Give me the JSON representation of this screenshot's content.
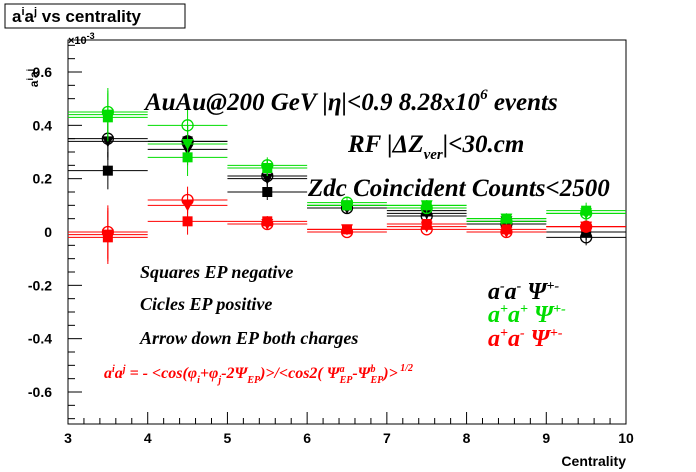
{
  "chart_data": {
    "type": "scatter",
    "title": "aⁱaʲ vs centrality",
    "xlabel": "Centrality",
    "ylabel": "aⁱaʲ",
    "y_exponent_label": "×10⁻³",
    "xlim": [
      3,
      10
    ],
    "ylim": [
      -0.72,
      0.72
    ],
    "x_ticks": [
      "3",
      "4",
      "5",
      "6",
      "7",
      "8",
      "9",
      "10"
    ],
    "y_ticks": [
      "-0.6",
      "-0.4",
      "-0.2",
      "0",
      "0.2",
      "0.4",
      "0.6"
    ],
    "grid": false,
    "bin_halfwidth": 0.5,
    "x": [
      3.5,
      4.5,
      5.5,
      6.5,
      7.5,
      8.5,
      9.5
    ],
    "series": [
      {
        "group": "a-a-",
        "marker": "square",
        "color": "#000000",
        "values": [
          0.23,
          0.34,
          0.15,
          0.1,
          0.08,
          0.04,
          0.0
        ],
        "errors": [
          0.07,
          0.06,
          0.03,
          0.02,
          0.02,
          0.02,
          0.03
        ]
      },
      {
        "group": "a-a-",
        "marker": "circle",
        "color": "#000000",
        "values": [
          0.35,
          0.34,
          0.21,
          0.09,
          0.06,
          0.03,
          -0.02
        ],
        "errors": [
          0.07,
          0.06,
          0.03,
          0.02,
          0.02,
          0.02,
          0.03
        ]
      },
      {
        "group": "a-a-",
        "marker": "triangle-down",
        "color": "#000000",
        "values": [
          0.34,
          0.31,
          0.2,
          0.09,
          0.07,
          0.04,
          0.0
        ],
        "errors": [
          0.07,
          0.06,
          0.03,
          0.02,
          0.02,
          0.02,
          0.03
        ]
      },
      {
        "group": "a+a+",
        "marker": "square",
        "color": "#00dd00",
        "values": [
          0.43,
          0.28,
          0.24,
          0.1,
          0.1,
          0.05,
          0.08
        ],
        "errors": [
          0.09,
          0.07,
          0.03,
          0.02,
          0.02,
          0.02,
          0.03
        ]
      },
      {
        "group": "a+a+",
        "marker": "circle",
        "color": "#00dd00",
        "values": [
          0.45,
          0.4,
          0.25,
          0.11,
          0.09,
          0.04,
          0.07
        ],
        "errors": [
          0.09,
          0.07,
          0.03,
          0.02,
          0.02,
          0.02,
          0.03
        ]
      },
      {
        "group": "a+a+",
        "marker": "triangle-down",
        "color": "#00dd00",
        "values": [
          0.44,
          0.33,
          0.24,
          0.1,
          0.1,
          0.05,
          0.07
        ],
        "errors": [
          0.09,
          0.07,
          0.03,
          0.02,
          0.02,
          0.02,
          0.03
        ]
      },
      {
        "group": "a+a-",
        "marker": "square",
        "color": "#ff0000",
        "values": [
          -0.02,
          0.04,
          0.04,
          0.01,
          0.03,
          0.01,
          0.02
        ],
        "errors": [
          0.1,
          0.05,
          0.02,
          0.01,
          0.01,
          0.01,
          0.02
        ]
      },
      {
        "group": "a+a-",
        "marker": "circle",
        "color": "#ff0000",
        "values": [
          0.0,
          0.12,
          0.03,
          0.0,
          0.01,
          0.0,
          0.02
        ],
        "errors": [
          0.1,
          0.05,
          0.02,
          0.01,
          0.01,
          0.01,
          0.02
        ]
      },
      {
        "group": "a+a-",
        "marker": "triangle-down",
        "color": "#ff0000",
        "values": [
          -0.01,
          0.1,
          0.03,
          0.01,
          0.02,
          0.0,
          0.02
        ],
        "errors": [
          0.1,
          0.05,
          0.02,
          0.01,
          0.01,
          0.01,
          0.02
        ]
      }
    ],
    "annotations": {
      "line1": "AuAu@200 GeV |η|<0.9 8.28x10⁶ events",
      "line2": "RF |ΔZver|<30.cm",
      "line3": "Zdc Coincident Counts<2500",
      "legend_squares": "Squares EP negative",
      "legend_circles": "Cicles EP positive",
      "legend_arrows": "Arrow down EP both charges",
      "formula": "aⁱaʲ = - <cos(φi+φj-2ΨEP)>/<cos2(ΨaEP-ΨbEP)>1/2",
      "charge_legend": [
        {
          "label": "a⁻a⁻",
          "psi": "Ψ+-",
          "color": "#000000"
        },
        {
          "label": "a⁺a⁺",
          "psi": "Ψ+-",
          "color": "#00dd00"
        },
        {
          "label": "a⁺a⁻",
          "psi": "Ψ+-",
          "color": "#ff0000"
        }
      ]
    }
  }
}
